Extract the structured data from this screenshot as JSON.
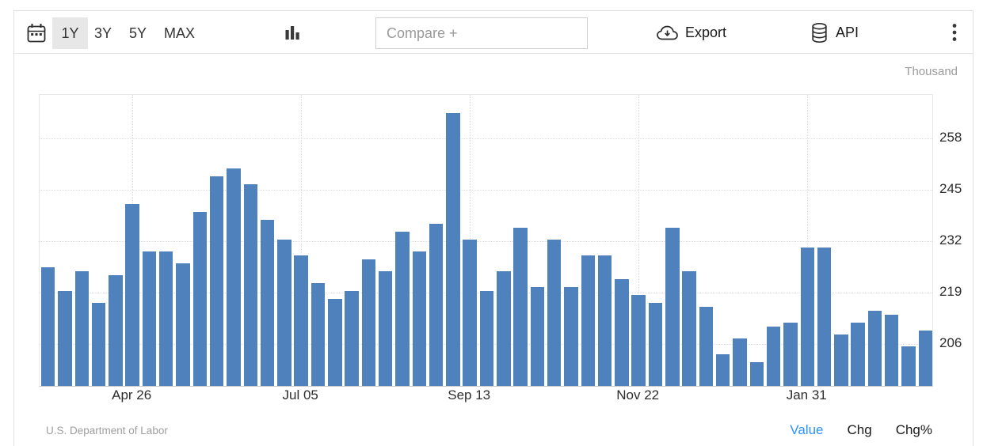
{
  "toolbar": {
    "ranges": [
      "1Y",
      "3Y",
      "5Y",
      "MAX"
    ],
    "selected_range": "1Y",
    "compare_placeholder": "Compare +",
    "export_label": "Export",
    "api_label": "API",
    "icons": {
      "calendar": "calendar-icon",
      "chart_type": "column-chart-icon",
      "export": "cloud-download-icon",
      "api": "database-icon",
      "menu": "kebab-menu-icon"
    }
  },
  "chart_data": {
    "type": "bar",
    "title": "",
    "unit_label": "Thousand",
    "bar_color": "#4f81bd",
    "grid": true,
    "legend_position": "none",
    "ylim": [
      195,
      269
    ],
    "y_ticks": [
      258,
      245,
      232,
      219,
      206
    ],
    "x_tick_labels": [
      "Apr 26",
      "Jul 05",
      "Sep 13",
      "Nov 22",
      "Jan 31"
    ],
    "x_tick_indices": [
      5,
      15,
      25,
      35,
      45
    ],
    "values": [
      225,
      219,
      224,
      216,
      223,
      241,
      229,
      229,
      226,
      239,
      248,
      250,
      246,
      237,
      232,
      228,
      221,
      217,
      219,
      227,
      224,
      234,
      229,
      236,
      264,
      232,
      219,
      224,
      235,
      220,
      232,
      220,
      228,
      228,
      222,
      218,
      216,
      235,
      224,
      215,
      203,
      207,
      201,
      210,
      211,
      230,
      230,
      208,
      211,
      214,
      213,
      205,
      209
    ]
  },
  "footer": {
    "source": "U.S. Department of Labor",
    "modes": [
      {
        "label": "Value",
        "active": true,
        "color": "#2e93fa"
      },
      {
        "label": "Chg",
        "active": false
      },
      {
        "label": "Chg%",
        "active": false
      }
    ]
  }
}
